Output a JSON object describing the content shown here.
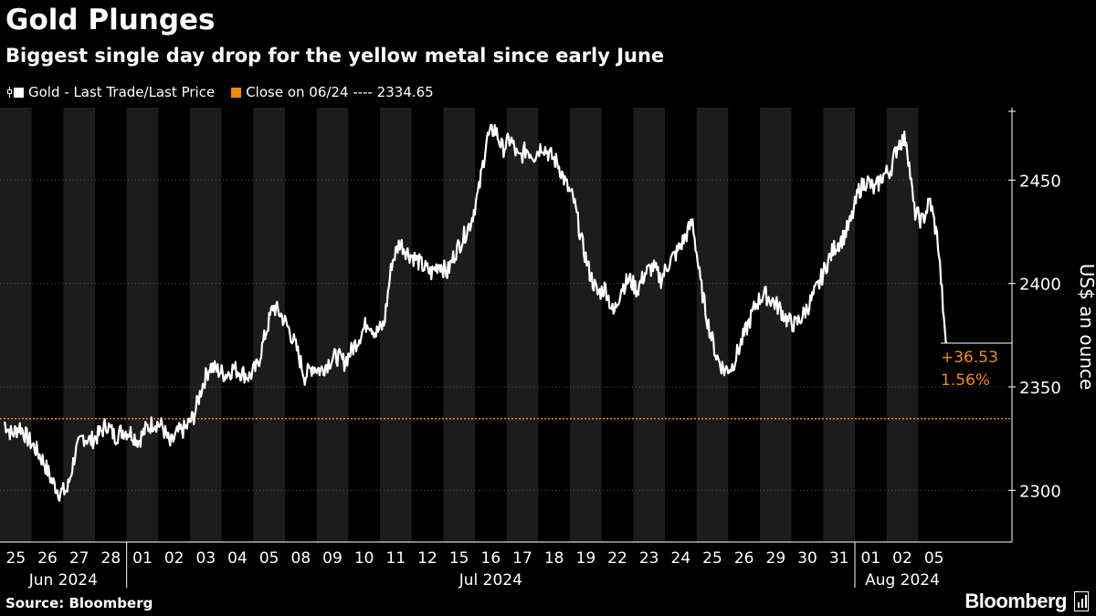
{
  "header": {
    "title": "Gold Plunges",
    "subtitle": "Biggest single day drop for the yellow metal since early June"
  },
  "legend": {
    "items": [
      {
        "label": "Gold - Last Trade/Last Price",
        "color": "#ffffff",
        "icon": "bar-series-icon"
      },
      {
        "label": "Close on 06/24 ---- 2334.65",
        "color": "#f28c00",
        "icon": "square-swatch-icon"
      }
    ]
  },
  "footer": {
    "source": "Source: Bloomberg",
    "brand": "Bloomberg",
    "brand_icon": "bloomberg-terminal-icon"
  },
  "chart_data": {
    "type": "line",
    "title": "Gold Plunges",
    "subtitle": "Biggest single day drop for the yellow metal since early June",
    "ylabel": "US$ an ounce",
    "ylim": [
      2275,
      2485
    ],
    "yticks": [
      2300,
      2350,
      2400,
      2450
    ],
    "ytick_labels": [
      "2300",
      "2350",
      "2400",
      "2450"
    ],
    "grid": true,
    "legend_position": "top-left",
    "colors": {
      "series": "#ffffff",
      "reference": "#f28c00",
      "band": "#1c1c1c",
      "gridline": "#555555"
    },
    "x_days": [
      "25",
      "26",
      "27",
      "28",
      "01",
      "02",
      "03",
      "04",
      "05",
      "08",
      "09",
      "10",
      "11",
      "12",
      "15",
      "16",
      "17",
      "18",
      "19",
      "22",
      "23",
      "24",
      "25",
      "26",
      "29",
      "30",
      "31",
      "01",
      "02",
      "05"
    ],
    "x_months": [
      {
        "label": "Jun 2024",
        "start_index": 0,
        "end_index": 3
      },
      {
        "label": "Jul 2024",
        "start_index": 4,
        "end_index": 26
      },
      {
        "label": "Aug 2024",
        "start_index": 27,
        "end_index": 29
      }
    ],
    "reference_line": {
      "name": "Close on 06/24",
      "value": 2334.65
    },
    "annotation": {
      "change": "+36.53",
      "percent": "1.56%",
      "value": 2371.2
    },
    "series": [
      {
        "name": "Gold - Last Trade/Last Price",
        "values": [
          [
            2333,
            2327,
            2331,
            2325
          ],
          [
            2320,
            2314,
            2305,
            2299
          ],
          [
            2300,
            2318,
            2326,
            2324
          ],
          [
            2327,
            2332,
            2326,
            2329
          ],
          [
            2328,
            2324,
            2330,
            2333
          ],
          [
            2331,
            2322,
            2328,
            2330
          ],
          [
            2336,
            2350,
            2360,
            2358
          ],
          [
            2356,
            2359,
            2357,
            2355
          ],
          [
            2360,
            2375,
            2389,
            2385
          ],
          [
            2378,
            2368,
            2355,
            2360
          ],
          [
            2358,
            2362,
            2365,
            2362
          ],
          [
            2368,
            2375,
            2382,
            2376
          ],
          [
            2380,
            2410,
            2420,
            2415
          ],
          [
            2412,
            2408,
            2405,
            2410
          ],
          [
            2405,
            2415,
            2422,
            2430
          ],
          [
            2445,
            2470,
            2475,
            2465
          ],
          [
            2470,
            2460,
            2465,
            2462
          ],
          [
            2467,
            2462,
            2458,
            2448
          ],
          [
            2440,
            2420,
            2405,
            2395
          ],
          [
            2398,
            2385,
            2398,
            2402
          ],
          [
            2397,
            2405,
            2408,
            2402
          ],
          [
            2410,
            2415,
            2422,
            2430
          ],
          [
            2400,
            2380,
            2365,
            2358
          ],
          [
            2360,
            2370,
            2380,
            2390
          ],
          [
            2395,
            2392,
            2388,
            2382
          ],
          [
            2380,
            2385,
            2392,
            2400
          ],
          [
            2410,
            2418,
            2422,
            2430
          ],
          [
            2445,
            2450,
            2445,
            2452
          ],
          [
            2455,
            2468,
            2470,
            2435
          ],
          [
            2430,
            2440,
            2420,
            2371.2
          ]
        ]
      }
    ]
  }
}
